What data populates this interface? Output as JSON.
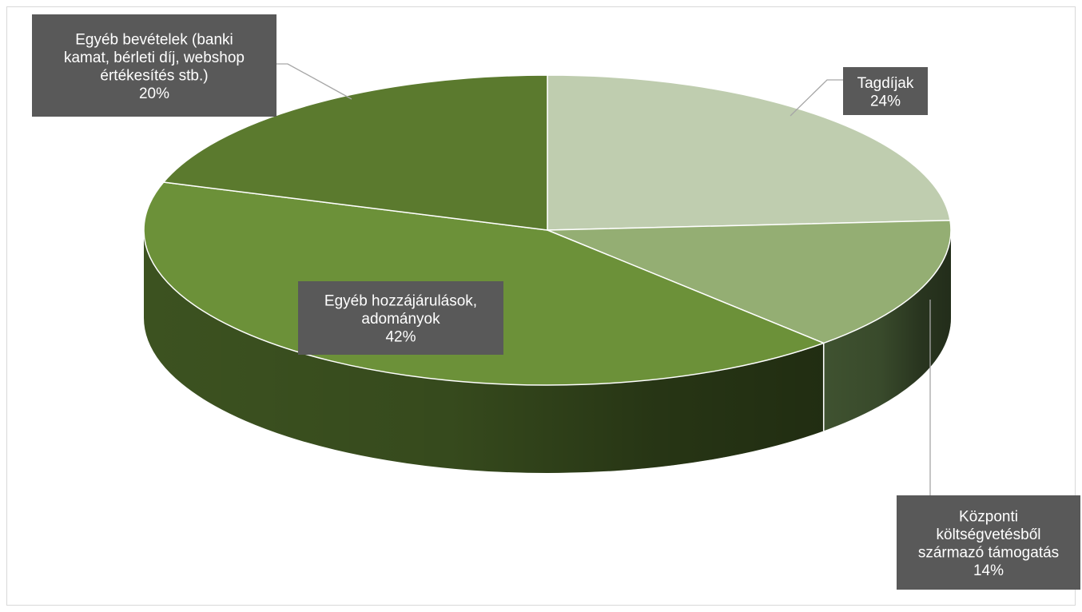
{
  "chart_data": {
    "type": "pie",
    "style": "3d",
    "categories": [
      "Tagdíjak",
      "Központi költségvetésből származó támogatás",
      "Egyéb hozzájárulások, adományok",
      "Egyéb bevételek (banki kamat, bérleti díj, webshop értékesítés stb.)"
    ],
    "values": [
      24,
      14,
      42,
      20
    ],
    "value_labels": [
      "24%",
      "14%",
      "42%",
      "20%"
    ],
    "title": "",
    "legend": "none",
    "colors": [
      "#bfcdaf",
      "#94ae73",
      "#6c9139",
      "#5b7a2e"
    ],
    "side_colors": [
      "#a9b99a",
      "#3f5230",
      "#3c5220",
      "#314417"
    ],
    "label_box_color": "#595959",
    "label_text_color": "#ffffff",
    "leader_line_color": "#a6a6a6",
    "data_labels": [
      {
        "lines": [
          "Tagdíjak",
          "24%"
        ]
      },
      {
        "lines": [
          "Központi",
          "költségvetésből",
          "származó támogatás",
          "14%"
        ]
      },
      {
        "lines": [
          "Egyéb hozzájárulások,",
          "adományok",
          "42%"
        ]
      },
      {
        "lines": [
          "Egyéb bevételek (banki",
          "kamat, bérleti díj, webshop",
          "értékesítés stb.)",
          "20%"
        ]
      }
    ]
  }
}
